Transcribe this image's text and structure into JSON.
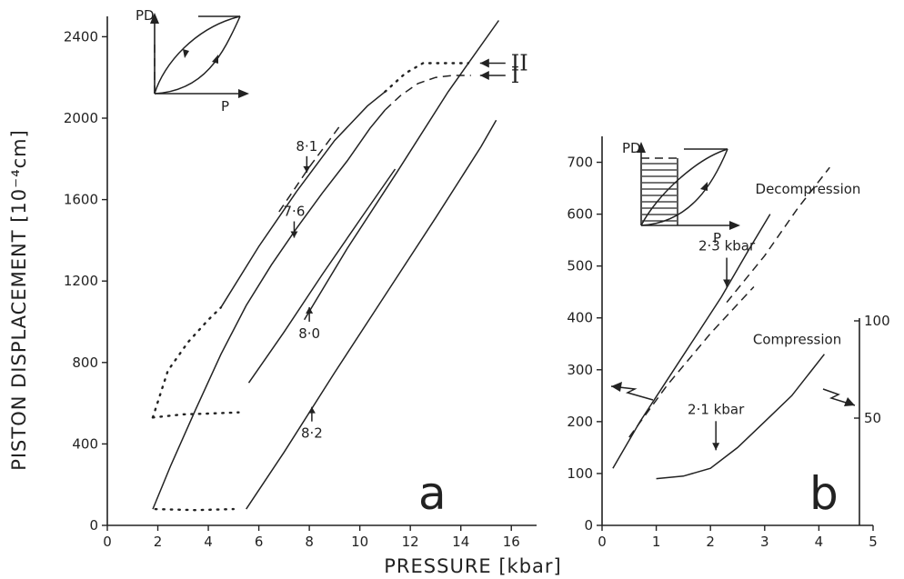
{
  "chart_data": [
    {
      "panel": "a",
      "type": "line",
      "xlabel": "PRESSURE [kbar]",
      "ylabel": "PISTON DISPLACEMENT [10⁻⁴cm]",
      "xlim": [
        0,
        17
      ],
      "ylim": [
        0,
        2500
      ],
      "xticks": [
        "0",
        "2",
        "4",
        "6",
        "8",
        "10",
        "12",
        "14",
        "16"
      ],
      "yticks": [
        "0",
        "400",
        "800",
        "1200",
        "1600",
        "2000",
        "2400"
      ],
      "series": [
        {
          "style": "solid",
          "x": [
            1.8,
            2.5,
            3.5,
            4.5,
            5.5,
            6.5,
            7.5,
            8.5,
            9.5,
            10.4,
            11.0
          ],
          "y": [
            80,
            290,
            570,
            840,
            1080,
            1280,
            1460,
            1630,
            1790,
            1950,
            2040
          ]
        },
        {
          "style": "dashed",
          "x": [
            11.0,
            11.6,
            12.3,
            13.0,
            13.7,
            14.4
          ],
          "y": [
            2040,
            2110,
            2170,
            2200,
            2210,
            2210
          ]
        },
        {
          "style": "solid",
          "x": [
            4.5,
            6.0,
            7.5,
            9.0,
            10.3,
            11.0
          ],
          "y": [
            1070,
            1370,
            1640,
            1890,
            2060,
            2130
          ]
        },
        {
          "style": "dotted",
          "x": [
            11.0,
            11.8,
            12.5,
            13.3,
            14.3
          ],
          "y": [
            2130,
            2220,
            2270,
            2270,
            2270
          ]
        },
        {
          "style": "dotted",
          "x": [
            1.8,
            2.4,
            3.2,
            4.0,
            4.5
          ],
          "y": [
            530,
            760,
            900,
            1010,
            1070
          ]
        },
        {
          "style": "dotted",
          "x": [
            1.8,
            3.0,
            4.2,
            5.2
          ],
          "y": [
            530,
            545,
            550,
            555
          ]
        },
        {
          "style": "solid",
          "x": [
            5.6,
            7.0,
            8.5,
            10.0,
            11.4
          ],
          "y": [
            700,
            950,
            1230,
            1500,
            1750
          ]
        },
        {
          "style": "solid",
          "x": [
            5.5,
            7.0,
            9.0,
            11.0,
            13.0,
            14.8,
            15.4
          ],
          "y": [
            80,
            360,
            750,
            1130,
            1510,
            1860,
            1990
          ]
        },
        {
          "style": "dotted",
          "x": [
            1.9,
            3.5,
            5.0
          ],
          "y": [
            80,
            75,
            80
          ]
        },
        {
          "style": "solid",
          "x": [
            7.8,
            9.5,
            11.5,
            13.5,
            15.5
          ],
          "y": [
            1010,
            1360,
            1740,
            2130,
            2480
          ]
        },
        {
          "style": "dashed",
          "x": [
            6.8,
            7.4,
            8.0,
            8.6,
            9.2
          ],
          "y": [
            1540,
            1650,
            1760,
            1860,
            1960
          ]
        }
      ],
      "markers": [
        {
          "label": "II",
          "x": 14.4,
          "y": 2270
        },
        {
          "label": "I",
          "x": 14.4,
          "y": 2210
        }
      ],
      "annotations": [
        {
          "text": "8·1",
          "x": 7.9,
          "y": 1840
        },
        {
          "text": "7·6",
          "x": 7.4,
          "y": 1520
        },
        {
          "text": "8·0",
          "x": 8.0,
          "y": 920
        },
        {
          "text": "8·2",
          "x": 8.1,
          "y": 430
        }
      ],
      "panel_label": "a",
      "inset_labels": [
        "PD",
        "P"
      ]
    },
    {
      "panel": "b",
      "type": "line",
      "xlim": [
        0,
        5
      ],
      "ylim_left": [
        0,
        750
      ],
      "xticks": [
        "0",
        "1",
        "2",
        "3",
        "4",
        "5"
      ],
      "yticks_left": [
        "0",
        "100",
        "200",
        "300",
        "400",
        "500",
        "600",
        "700"
      ],
      "yticks_right": [
        "50",
        "100"
      ],
      "series": [
        {
          "name": "Decompression",
          "style": "solid",
          "x": [
            0.2,
            0.7,
            1.2,
            1.7,
            2.2,
            2.7,
            3.1
          ],
          "y": [
            110,
            200,
            280,
            360,
            440,
            530,
            600
          ]
        },
        {
          "style": "dashed",
          "x": [
            2.3,
            3.0,
            3.6,
            4.2
          ],
          "y": [
            430,
            520,
            610,
            690
          ]
        },
        {
          "name": "Compression",
          "style": "solid",
          "x": [
            1.0,
            1.5,
            2.0,
            2.5,
            3.0,
            3.5,
            4.1
          ],
          "y": [
            90,
            95,
            110,
            150,
            200,
            250,
            330
          ]
        },
        {
          "style": "dashed",
          "x": [
            0.5,
            1.2,
            2.0,
            2.8
          ],
          "y": [
            170,
            270,
            370,
            460
          ]
        }
      ],
      "annotations": [
        {
          "text": "2·3 kbar",
          "x": 2.3,
          "y": 530
        },
        {
          "text": "2·1 kbar",
          "x": 2.1,
          "y": 215
        },
        {
          "text": "Decompression",
          "x": 3.8,
          "y": 640
        },
        {
          "text": "Compression",
          "x": 3.6,
          "y": 350
        }
      ],
      "panel_label": "b",
      "inset_labels": [
        "PD",
        "P"
      ]
    }
  ]
}
